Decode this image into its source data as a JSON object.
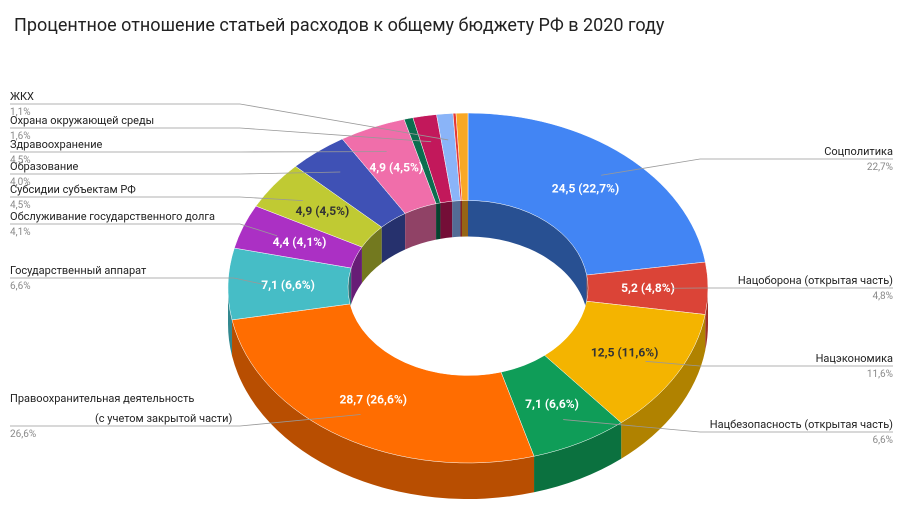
{
  "chart_data": {
    "type": "pie",
    "donut": true,
    "three_d": true,
    "title": "Процентное отношение статьей расходов к общему бюджету РФ в 2020 году",
    "categories": [
      "Соцполитика",
      "Нацоборона (открытая часть)",
      "Нацэкономика",
      "Нацбезопасность (открытая часть)",
      [
        "Правоохранительная деятельность",
        "(с учетом закрытой части)"
      ],
      "Государственный аппарат",
      "Обслуживание государственного долга",
      "Субсидии субъектам РФ",
      "Образование",
      "Здравоохранение",
      null,
      "Охрана окружающей среды",
      "ЖКХ",
      null,
      null
    ],
    "values": [
      22.7,
      4.8,
      11.6,
      6.6,
      26.6,
      6.6,
      4.1,
      4.5,
      4.0,
      4.5,
      0.6,
      1.6,
      1.1,
      0.2,
      0.8
    ],
    "value_labels": [
      "22,7%",
      "4,8%",
      "11,6%",
      "6,6%",
      "26,6%",
      "6,6%",
      "4,1%",
      "4,5%",
      "4,0%",
      "4,5%",
      null,
      "1,6%",
      "1,1%",
      null,
      null
    ],
    "amount_labels": [
      "24,5 (22,7%)",
      "5,2 (4,8%)",
      "12,5 (11,6%)",
      "7,1 (6,6%)",
      "28,7 (26,6%)",
      "7,1 (6,6%)",
      "4,4 (4,1%)",
      "4,9 (4,5%)",
      null,
      "4,9 (4,5%)",
      null,
      null,
      null,
      null,
      null
    ],
    "colors": [
      "#4285f4",
      "#db4437",
      "#f4b400",
      "#0f9d58",
      "#ff6d01",
      "#46bdc6",
      "#ab30c4",
      "#c0ca33",
      "#3f51b5",
      "#f06eaa",
      "#0b6e4f",
      "#c2185b",
      "#8ab4f8",
      "#e53935",
      "#f9a825"
    ]
  }
}
